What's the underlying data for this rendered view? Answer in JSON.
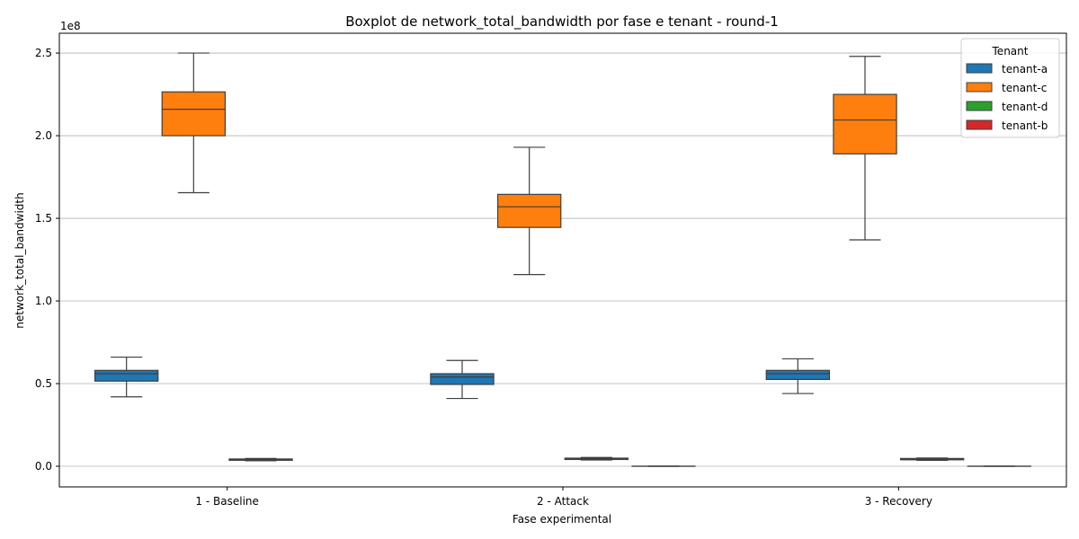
{
  "chart_data": {
    "type": "boxplot",
    "title": "Boxplot de network_total_bandwidth por fase e tenant - round-1",
    "xlabel": "Fase experimental",
    "ylabel": "network_total_bandwidth",
    "y_multiplier_label": "1e8",
    "ylim": [
      -12500000,
      262000000
    ],
    "y_ticks": [
      0,
      50000000,
      100000000,
      150000000,
      200000000,
      250000000
    ],
    "y_tick_labels": [
      "0.0",
      "0.5",
      "1.0",
      "1.5",
      "2.0",
      "2.5"
    ],
    "grid": "y",
    "categories": [
      "1 - Baseline",
      "2 - Attack",
      "3 - Recovery"
    ],
    "legend": {
      "title": "Tenant",
      "placement": "top-right"
    },
    "series": [
      {
        "name": "tenant-a",
        "color": "#1f77b4",
        "boxes": [
          {
            "whisker_low": 42000000,
            "q1": 51500000,
            "median": 56000000,
            "q3": 58000000,
            "whisker_high": 66000000
          },
          {
            "whisker_low": 41000000,
            "q1": 49500000,
            "median": 54000000,
            "q3": 56000000,
            "whisker_high": 64000000
          },
          {
            "whisker_low": 44000000,
            "q1": 52500000,
            "median": 56000000,
            "q3": 58000000,
            "whisker_high": 65000000
          }
        ]
      },
      {
        "name": "tenant-c",
        "color": "#ff7f0e",
        "boxes": [
          {
            "whisker_low": 165500000,
            "q1": 200000000,
            "median": 216000000,
            "q3": 226500000,
            "whisker_high": 250000000
          },
          {
            "whisker_low": 116000000,
            "q1": 144500000,
            "median": 157000000,
            "q3": 164500000,
            "whisker_high": 193000000
          },
          {
            "whisker_low": 137000000,
            "q1": 189000000,
            "median": 209500000,
            "q3": 225000000,
            "whisker_high": 248000000
          }
        ]
      },
      {
        "name": "tenant-d",
        "color": "#2ca02c",
        "boxes": [
          {
            "whisker_low": 3300000,
            "q1": 3600000,
            "median": 4000000,
            "q3": 4400000,
            "whisker_high": 4700000
          },
          {
            "whisker_low": 3800000,
            "q1": 4100000,
            "median": 4500000,
            "q3": 4900000,
            "whisker_high": 5300000
          },
          {
            "whisker_low": 3600000,
            "q1": 3900000,
            "median": 4300000,
            "q3": 4700000,
            "whisker_high": 5000000
          }
        ]
      },
      {
        "name": "tenant-b",
        "color": "#d62728",
        "boxes": [
          null,
          {
            "whisker_low": 0,
            "q1": 0,
            "median": 0,
            "q3": 0,
            "whisker_high": 0
          },
          {
            "whisker_low": 0,
            "q1": 0,
            "median": 0,
            "q3": 0,
            "whisker_high": 0
          }
        ]
      }
    ]
  }
}
